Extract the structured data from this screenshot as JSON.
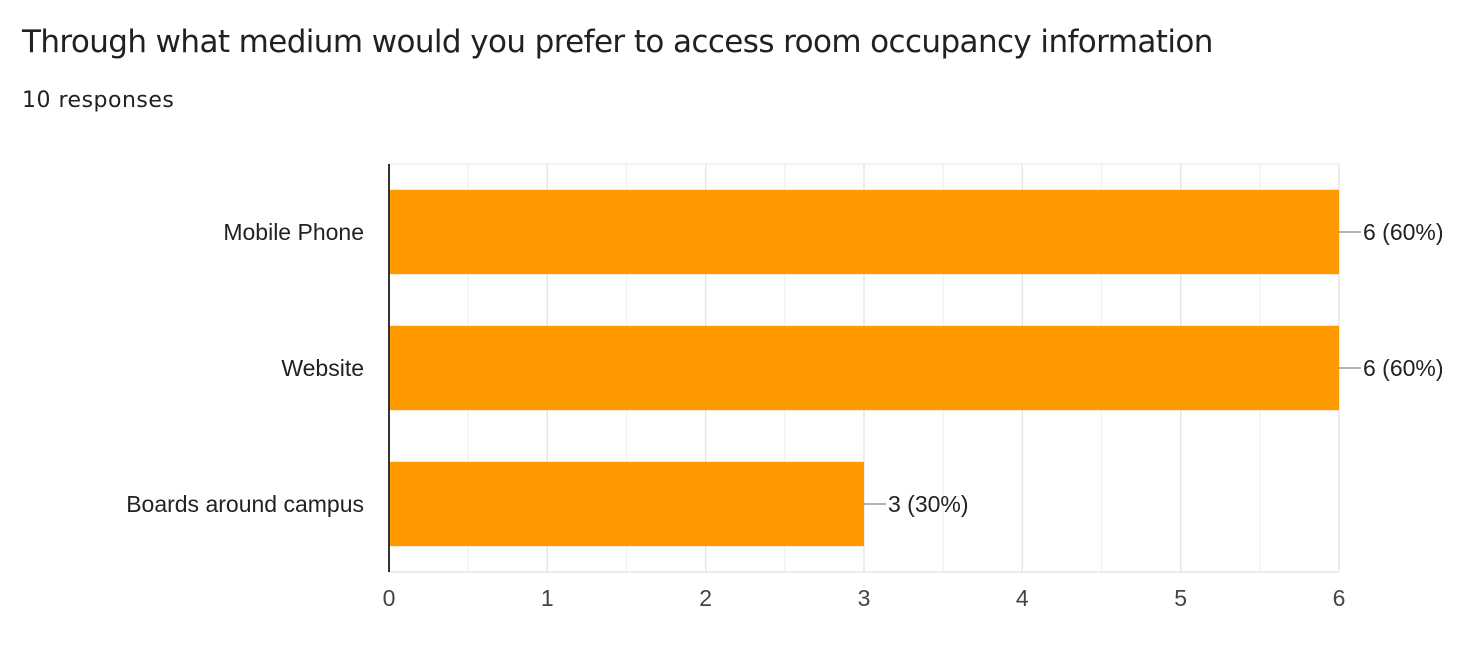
{
  "header": {
    "title": "Through what medium would you prefer to access room occupancy information",
    "responses": "10 responses"
  },
  "colors": {
    "bar": "#ff9900",
    "grid": "#ebebeb",
    "axis": "#333333"
  },
  "chart_data": {
    "type": "bar",
    "orientation": "horizontal",
    "categories": [
      "Mobile Phone",
      "Website",
      "Boards around campus"
    ],
    "values": [
      6,
      6,
      3
    ],
    "value_labels": [
      "6 (60%)",
      "6 (60%)",
      "3 (30%)"
    ],
    "xlim": [
      0,
      6
    ],
    "xticks": [
      "0",
      "1",
      "2",
      "3",
      "4",
      "5",
      "6"
    ],
    "grid": true,
    "legend": "none"
  }
}
